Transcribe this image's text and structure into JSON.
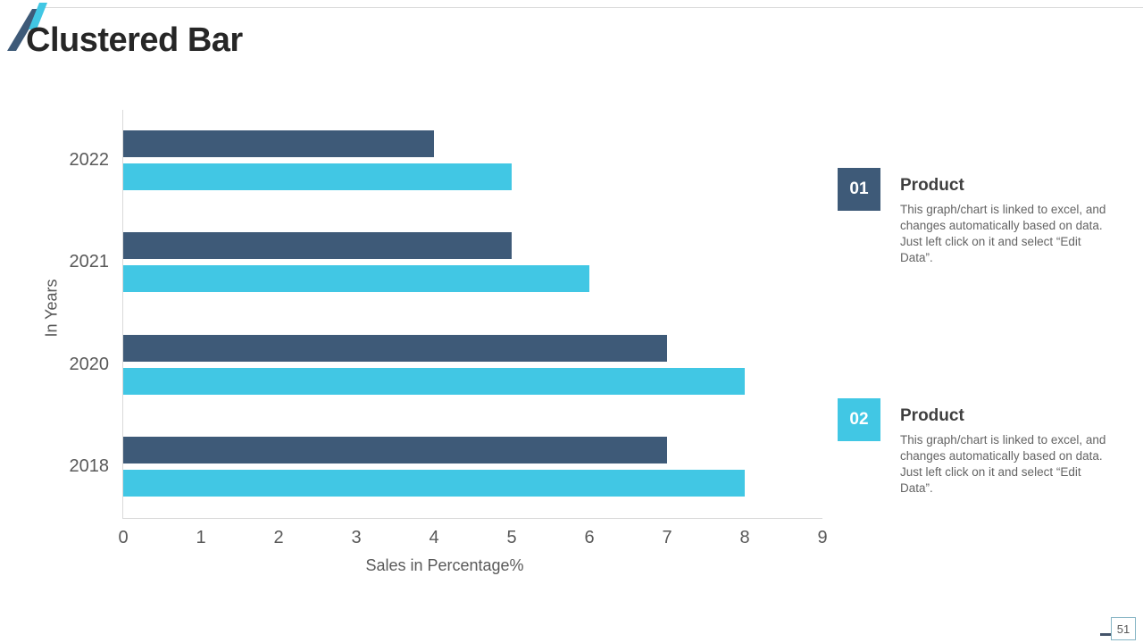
{
  "slide": {
    "title": "Clustered Bar",
    "page_number": "51"
  },
  "colors": {
    "navy": "#3e5a78",
    "cyan": "#41c7e4",
    "axis_line": "#d9d9d9",
    "axis_text": "#595959"
  },
  "chart_data": {
    "type": "bar",
    "orientation": "horizontal",
    "title": "",
    "xlabel": "Sales in Percentage%",
    "ylabel": "In Years",
    "xlim": [
      0,
      9
    ],
    "xticks": [
      0,
      1,
      2,
      3,
      4,
      5,
      6,
      7,
      8,
      9
    ],
    "grid": false,
    "legend_position": "right-info-blocks",
    "categories": [
      "2022",
      "2021",
      "2020",
      "2018"
    ],
    "series": [
      {
        "name": "Product 01",
        "color": "#3e5a78",
        "values": [
          4,
          5,
          7,
          7
        ]
      },
      {
        "name": "Product 02",
        "color": "#41c7e4",
        "values": [
          5,
          6,
          8,
          8
        ]
      }
    ]
  },
  "info_blocks": [
    {
      "number": "01",
      "accent": "#3e5a78",
      "heading": "Product",
      "body": "This graph/chart is linked to excel, and changes automatically based on data. Just left click on it and select “Edit Data”."
    },
    {
      "number": "02",
      "accent": "#41c7e4",
      "heading": "Product",
      "body": "This graph/chart is linked to excel, and changes automatically based on data. Just left click on it and select “Edit Data”."
    }
  ]
}
